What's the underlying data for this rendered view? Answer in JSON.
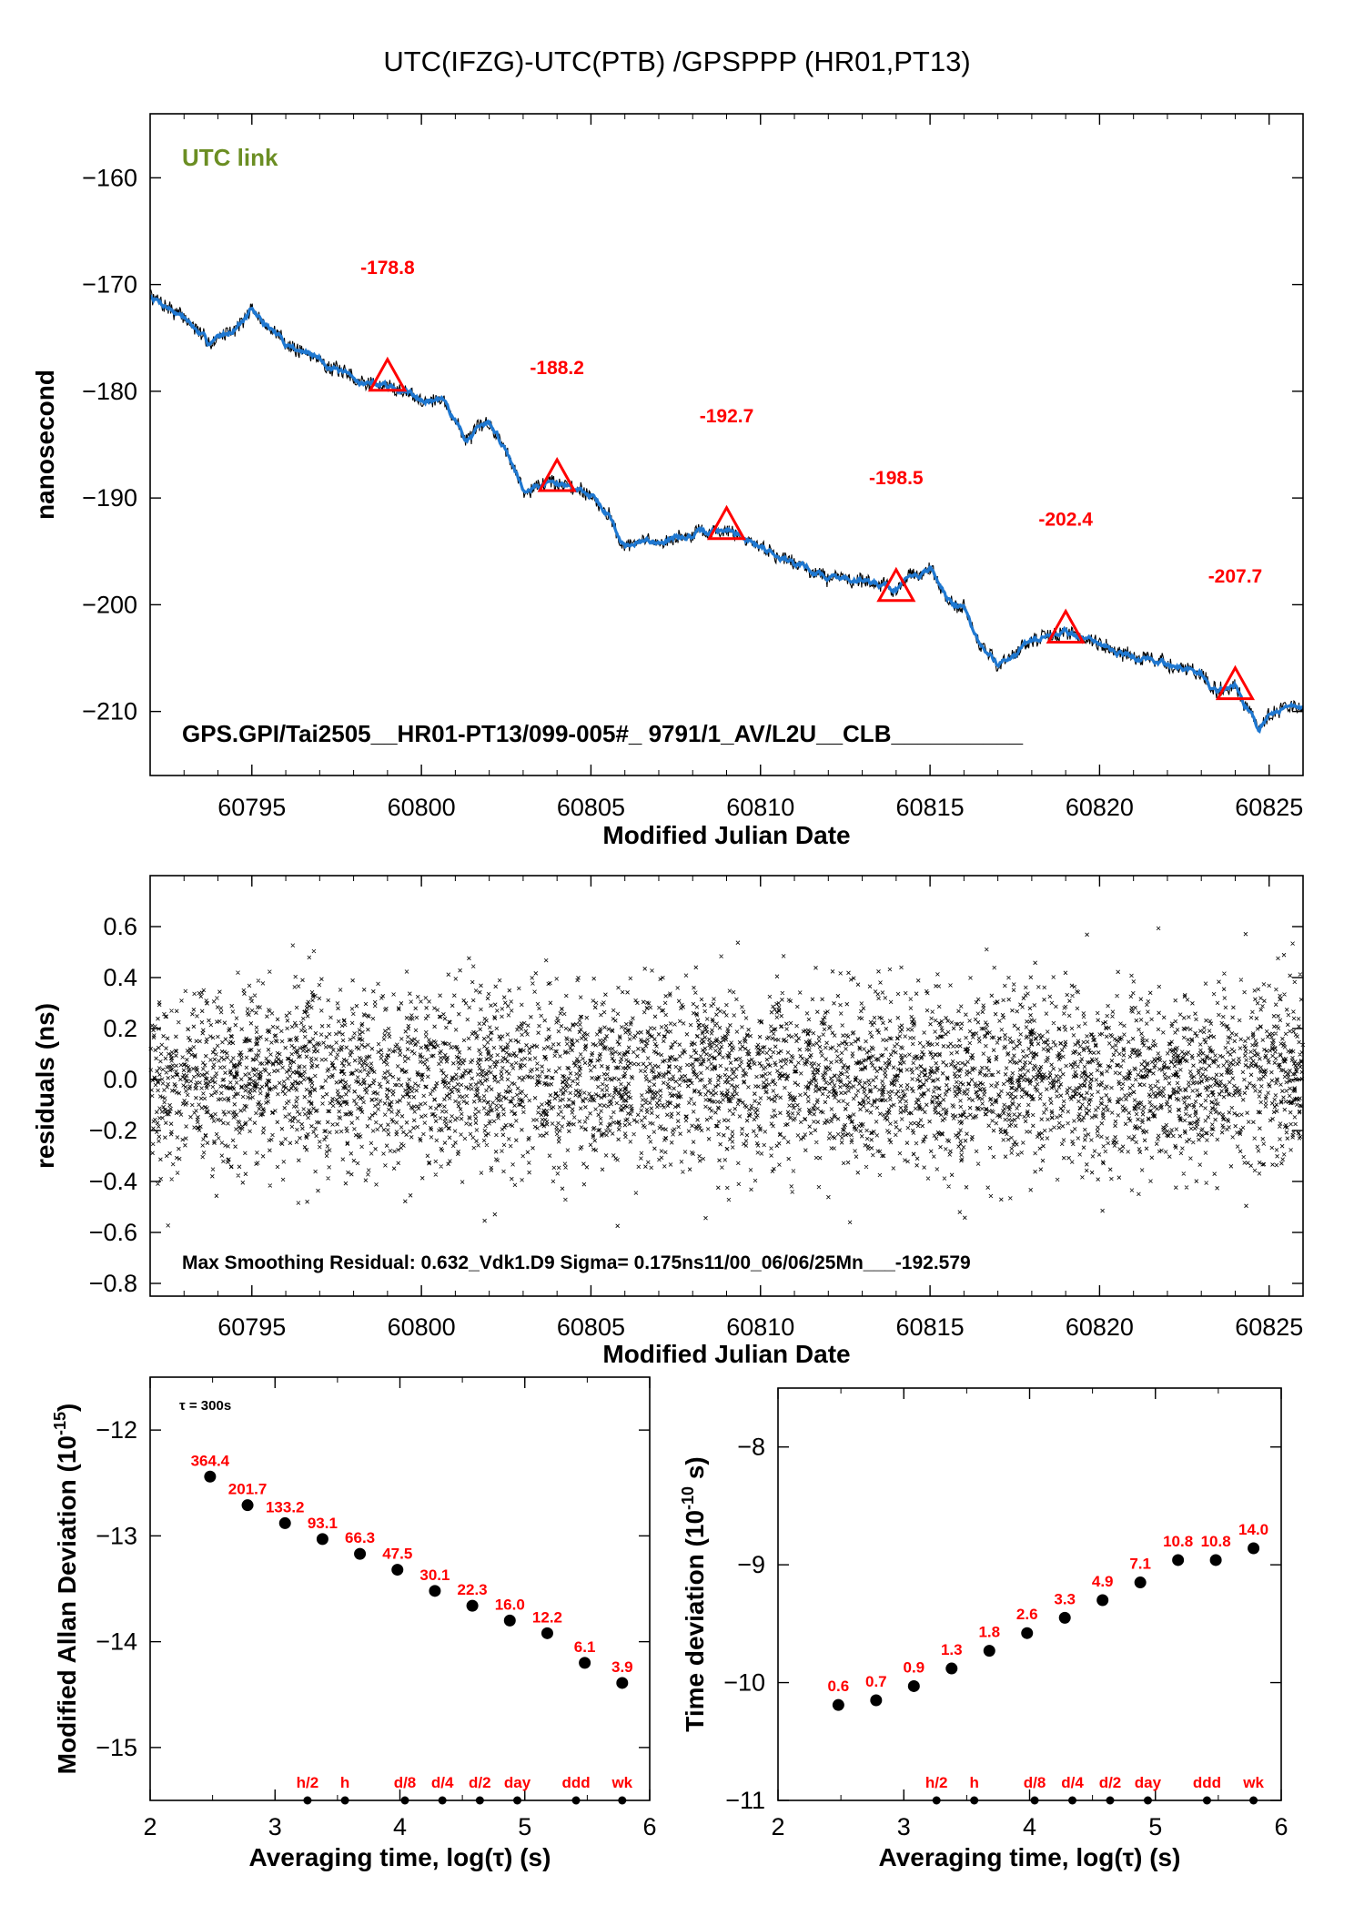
{
  "title": "UTC(IFZG)-UTC(PTB)  /GPSPPP  (HR01,PT13)",
  "colors": {
    "series": "#1f78d1",
    "raw": "#000000",
    "marker": "#ff0000",
    "link_label": "#6b8e23"
  },
  "chart_data": [
    {
      "type": "line",
      "panel": "time-series",
      "title": "",
      "xlabel": "Modified Julian Date",
      "ylabel": "nanosecond",
      "xlim": [
        60792,
        60826
      ],
      "ylim": [
        -216,
        -154
      ],
      "xticks": [
        60795,
        60800,
        60805,
        60810,
        60815,
        60820,
        60825
      ],
      "yticks": [
        -160,
        -170,
        -180,
        -190,
        -200,
        -210
      ],
      "link_label": "UTC link",
      "footer_text": "GPS.GPI/Tai2505__HR01-PT13/099-005#_  9791/1_AV/L2U__CLB__________",
      "series": [
        {
          "x": [
            60792,
            60793,
            60793.7,
            60794.3,
            60795,
            60795.5,
            60796,
            60797,
            60798,
            60799,
            60800,
            60800.7,
            60801.3,
            60802,
            60802.5,
            60803,
            60803.8,
            60804.5,
            60805,
            60805.5,
            60806,
            60807,
            60808,
            60809,
            60810,
            60811,
            60812,
            60813,
            60814,
            60815,
            60815.5,
            60816,
            60816.5,
            60817,
            60818,
            60819,
            60820,
            60821,
            60822,
            60823,
            60823.5,
            60824,
            60824.7,
            60825,
            60826
          ],
          "y": [
            -171,
            -173,
            -175.5,
            -174.5,
            -172.5,
            -174,
            -175.5,
            -177,
            -179,
            -179.5,
            -180.5,
            -181,
            -184.5,
            -183,
            -185.5,
            -189,
            -188.5,
            -189,
            -189.5,
            -191.5,
            -194.5,
            -194,
            -193.5,
            -193,
            -194.5,
            -196,
            -197.5,
            -197.5,
            -198.5,
            -196.5,
            -199.5,
            -200.5,
            -204,
            -205.5,
            -203.5,
            -202.5,
            -203.5,
            -205,
            -205.5,
            -206.5,
            -208.5,
            -207.5,
            -211.5,
            -210,
            -209.5
          ]
        }
      ],
      "markers": [
        {
          "x": 60799,
          "y": -178.8,
          "label": "-178.8"
        },
        {
          "x": 60804,
          "y": -188.2,
          "label": "-188.2"
        },
        {
          "x": 60809,
          "y": -192.7,
          "label": "-192.7"
        },
        {
          "x": 60814,
          "y": -198.5,
          "label": "-198.5"
        },
        {
          "x": 60819,
          "y": -202.4,
          "label": "-202.4"
        },
        {
          "x": 60824,
          "y": -207.7,
          "label": "-207.7"
        }
      ]
    },
    {
      "type": "scatter",
      "panel": "residuals",
      "title": "",
      "xlabel": "Modified Julian Date",
      "ylabel": "residuals (ns)",
      "xlim": [
        60792,
        60826
      ],
      "ylim": [
        -0.85,
        0.8
      ],
      "xticks": [
        60795,
        60800,
        60805,
        60810,
        60815,
        60820,
        60825
      ],
      "yticks": [
        0.6,
        0.4,
        0.2,
        0.0,
        -0.2,
        -0.4,
        -0.6,
        -0.8
      ],
      "ytick_labels": [
        "0.6",
        "0.4",
        "0.2",
        "0.0",
        "−0.2",
        "−0.4",
        "−0.6",
        "−0.8"
      ],
      "spread_sigma": 0.175,
      "max_abs": 0.632,
      "footer_text": "Max Smoothing Residual: 0.632_Vdk1.D9  Sigma= 0.175ns11/00_06/06/25Mn___-192.579"
    },
    {
      "type": "scatter",
      "panel": "modified-allan-deviation",
      "title": "",
      "xlabel": "Averaging time, log(τ) (s)",
      "ylabel_main": "Modified Allan Deviation (10",
      "ylabel_exp": "-15",
      "ylabel_end": ")",
      "xlim": [
        2,
        6
      ],
      "ylim": [
        -15.5,
        -11.5
      ],
      "xticks": [
        2,
        3,
        4,
        5,
        6
      ],
      "yticks": [
        -12,
        -13,
        -14,
        -15
      ],
      "tau_note": "τ = 300s",
      "points": {
        "x": [
          2.48,
          2.78,
          3.08,
          3.38,
          3.68,
          3.98,
          4.28,
          4.58,
          4.88,
          5.18,
          5.48,
          5.78
        ],
        "y": [
          -12.44,
          -12.71,
          -12.88,
          -13.03,
          -13.17,
          -13.32,
          -13.52,
          -13.66,
          -13.8,
          -13.92,
          -14.2,
          -14.39
        ],
        "labels": [
          "364.4",
          "201.7",
          "133.2",
          "93.1",
          "66.3",
          "47.5",
          "30.1",
          "22.3",
          "16.0",
          "12.2",
          "6.1",
          "3.9"
        ]
      },
      "interval_markers": [
        {
          "x": 3.26,
          "label": "h/2"
        },
        {
          "x": 3.56,
          "label": "h"
        },
        {
          "x": 4.04,
          "label": "d/8"
        },
        {
          "x": 4.34,
          "label": "d/4"
        },
        {
          "x": 4.64,
          "label": "d/2"
        },
        {
          "x": 4.94,
          "label": "day"
        },
        {
          "x": 5.41,
          "label": "ddd"
        },
        {
          "x": 5.78,
          "label": "wk"
        }
      ]
    },
    {
      "type": "scatter",
      "panel": "time-deviation",
      "title": "",
      "xlabel": "Averaging time, log(τ) (s)",
      "ylabel_main": "Time deviation (10",
      "ylabel_exp": "-10",
      "ylabel_end": " s)",
      "xlim": [
        2,
        6
      ],
      "ylim": [
        -11,
        -7.5
      ],
      "xticks": [
        2,
        3,
        4,
        5,
        6
      ],
      "yticks": [
        -8,
        -9,
        -10,
        -11
      ],
      "points": {
        "x": [
          2.48,
          2.78,
          3.08,
          3.38,
          3.68,
          3.98,
          4.28,
          4.58,
          4.88,
          5.18,
          5.48,
          5.78
        ],
        "y": [
          -10.19,
          -10.15,
          -10.03,
          -9.88,
          -9.73,
          -9.58,
          -9.45,
          -9.3,
          -9.15,
          -8.96,
          -8.96,
          -8.86
        ],
        "labels": [
          "0.6",
          "0.7",
          "0.9",
          "1.3",
          "1.8",
          "2.6",
          "3.3",
          "4.9",
          "7.1",
          "10.8",
          "10.8",
          "14.0"
        ]
      },
      "interval_markers": [
        {
          "x": 3.26,
          "label": "h/2"
        },
        {
          "x": 3.56,
          "label": "h"
        },
        {
          "x": 4.04,
          "label": "d/8"
        },
        {
          "x": 4.34,
          "label": "d/4"
        },
        {
          "x": 4.64,
          "label": "d/2"
        },
        {
          "x": 4.94,
          "label": "day"
        },
        {
          "x": 5.41,
          "label": "ddd"
        },
        {
          "x": 5.78,
          "label": "wk"
        }
      ]
    }
  ]
}
